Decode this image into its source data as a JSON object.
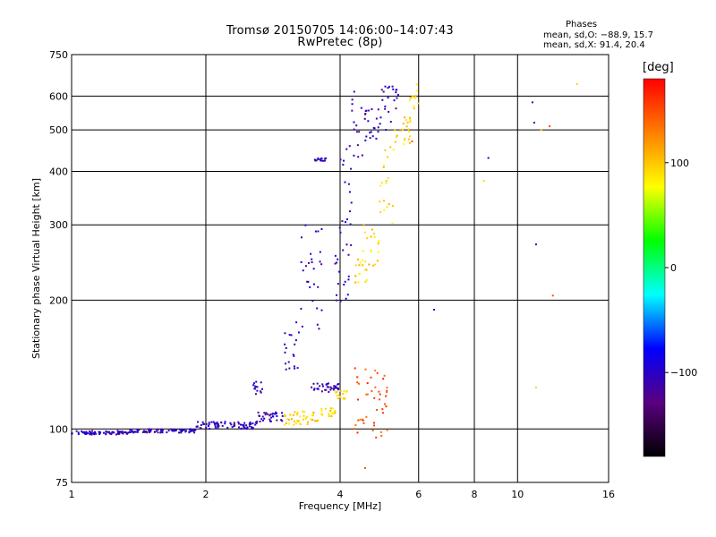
{
  "chart_data": {
    "type": "scatter",
    "title": "Tromsø 20150705 14:06:00–14:07:43",
    "subtitle": "RwPretec (8p)",
    "stats": {
      "heading": "Phases",
      "line_o": "mean, sd,O: −88.9, 15.7",
      "line_x": "mean, sd,X:  91.4, 20.4"
    },
    "xlabel": "Frequency [MHz]",
    "ylabel": "Stationary phase Virtual Height [km]",
    "x_scale": "log",
    "y_scale": "log",
    "xlim": [
      1,
      16
    ],
    "ylim": [
      75,
      750
    ],
    "x_ticks": [
      1,
      2,
      4,
      6,
      8,
      10,
      16
    ],
    "y_ticks": [
      75,
      100,
      200,
      300,
      400,
      500,
      600,
      750
    ],
    "grid": true,
    "colorbar": {
      "label": "[deg]",
      "range": [
        -180,
        180
      ],
      "ticks": [
        100,
        0,
        -100
      ],
      "colors": [
        "#000000",
        "#5a0080",
        "#0000ff",
        "#00ffff",
        "#00ff00",
        "#ffff00",
        "#ff7f00",
        "#ff0000"
      ]
    },
    "series": [
      {
        "phase": -105,
        "segments": [
          [
            1.0,
            1.35,
            97,
            99
          ],
          [
            1.35,
            1.9,
            98,
            100
          ],
          [
            1.9,
            2.6,
            100,
            104
          ],
          [
            2.6,
            3.0,
            104,
            110
          ],
          [
            2.55,
            2.7,
            120,
            130
          ],
          [
            3.0,
            3.25,
            130,
            180
          ],
          [
            3.25,
            3.65,
            170,
            300
          ],
          [
            3.45,
            4.0,
            122,
            128
          ],
          [
            3.5,
            3.75,
            420,
            430
          ],
          [
            3.9,
            4.25,
            195,
            300
          ],
          [
            4.0,
            4.25,
            300,
            470
          ],
          [
            4.25,
            4.5,
            430,
            640
          ],
          [
            4.5,
            4.95,
            470,
            560
          ],
          [
            4.95,
            5.2,
            500,
            650
          ],
          [
            5.2,
            5.4,
            560,
            640
          ]
        ],
        "points": [
          [
            6.5,
            190
          ],
          [
            8.6,
            430
          ],
          [
            10.8,
            580
          ],
          [
            11.0,
            270
          ],
          [
            10.9,
            520
          ]
        ]
      },
      {
        "phase": 95,
        "segments": [
          [
            3.0,
            3.6,
            102,
            110
          ],
          [
            3.6,
            3.9,
            107,
            112
          ],
          [
            3.9,
            4.15,
            117,
            123
          ],
          [
            4.3,
            4.6,
            220,
            250
          ],
          [
            4.5,
            4.9,
            240,
            300
          ],
          [
            4.9,
            5.3,
            300,
            460
          ],
          [
            5.3,
            5.8,
            460,
            540
          ],
          [
            5.7,
            6.0,
            560,
            640
          ]
        ],
        "points": [
          [
            8.4,
            380
          ],
          [
            11.0,
            125
          ],
          [
            11.3,
            500
          ],
          [
            13.6,
            640
          ]
        ]
      },
      {
        "phase": 150,
        "segments": [
          [
            4.3,
            5.2,
            95,
            140
          ]
        ],
        "points": [
          [
            12.0,
            205
          ],
          [
            11.8,
            510
          ],
          [
            4.55,
            81
          ],
          [
            5.8,
            470
          ]
        ]
      }
    ]
  }
}
